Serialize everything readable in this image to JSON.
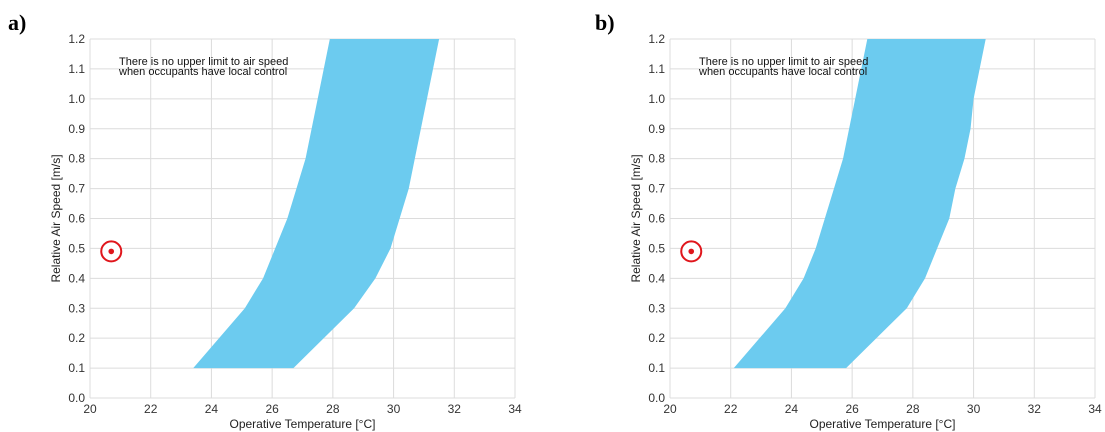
{
  "panels": [
    {
      "label": "a)"
    },
    {
      "label": "b)"
    }
  ],
  "chart_data": [
    {
      "type": "area",
      "xlabel": "Operative Temperature [°C]",
      "ylabel": "Relative Air Speed [m/s]",
      "xlim": [
        20,
        34
      ],
      "ylim": [
        0.0,
        1.2
      ],
      "x_ticks": [
        "20",
        "22",
        "24",
        "26",
        "28",
        "30",
        "32",
        "34"
      ],
      "y_ticks": [
        "0.0",
        "0.1",
        "0.2",
        "0.3",
        "0.4",
        "0.5",
        "0.6",
        "0.7",
        "0.8",
        "0.9",
        "1.0",
        "1.1",
        "1.2"
      ],
      "grid": true,
      "annotation": [
        "There is no upper limit to air speed",
        "when occupants have local control"
      ],
      "comfort_zone_color": "#6ccbef",
      "comfort_zone": {
        "left_boundary": [
          {
            "x": 23.4,
            "y": 0.1
          },
          {
            "x": 25.1,
            "y": 0.3
          },
          {
            "x": 25.7,
            "y": 0.4
          },
          {
            "x": 26.1,
            "y": 0.5
          },
          {
            "x": 26.5,
            "y": 0.6
          },
          {
            "x": 26.8,
            "y": 0.7
          },
          {
            "x": 27.1,
            "y": 0.8
          },
          {
            "x": 27.3,
            "y": 0.9
          },
          {
            "x": 27.5,
            "y": 1.0
          },
          {
            "x": 27.7,
            "y": 1.1
          },
          {
            "x": 27.9,
            "y": 1.2
          }
        ],
        "right_boundary": [
          {
            "x": 26.7,
            "y": 0.1
          },
          {
            "x": 28.7,
            "y": 0.3
          },
          {
            "x": 29.4,
            "y": 0.4
          },
          {
            "x": 29.9,
            "y": 0.5
          },
          {
            "x": 30.2,
            "y": 0.6
          },
          {
            "x": 30.5,
            "y": 0.7
          },
          {
            "x": 30.7,
            "y": 0.8
          },
          {
            "x": 30.9,
            "y": 0.9
          },
          {
            "x": 31.1,
            "y": 1.0
          },
          {
            "x": 31.3,
            "y": 1.1
          },
          {
            "x": 31.5,
            "y": 1.2
          }
        ]
      },
      "marker": {
        "x": 20.7,
        "y": 0.49,
        "color": "#e0161c"
      }
    },
    {
      "type": "area",
      "xlabel": "Operative Temperature [°C]",
      "ylabel": "Relative Air Speed [m/s]",
      "xlim": [
        20,
        34
      ],
      "ylim": [
        0.0,
        1.2
      ],
      "x_ticks": [
        "20",
        "22",
        "24",
        "26",
        "28",
        "30",
        "32",
        "34"
      ],
      "y_ticks": [
        "0.0",
        "0.1",
        "0.2",
        "0.3",
        "0.4",
        "0.5",
        "0.6",
        "0.7",
        "0.8",
        "0.9",
        "1.0",
        "1.1",
        "1.2"
      ],
      "grid": true,
      "annotation": [
        "There is no upper limit to air speed",
        "when occupants have local control"
      ],
      "comfort_zone_color": "#6ccbef",
      "comfort_zone": {
        "left_boundary": [
          {
            "x": 22.1,
            "y": 0.1
          },
          {
            "x": 23.8,
            "y": 0.3
          },
          {
            "x": 24.4,
            "y": 0.4
          },
          {
            "x": 24.8,
            "y": 0.5
          },
          {
            "x": 25.1,
            "y": 0.6
          },
          {
            "x": 25.4,
            "y": 0.7
          },
          {
            "x": 25.7,
            "y": 0.8
          },
          {
            "x": 25.9,
            "y": 0.9
          },
          {
            "x": 26.1,
            "y": 1.0
          },
          {
            "x": 26.3,
            "y": 1.1
          },
          {
            "x": 26.5,
            "y": 1.2
          }
        ],
        "right_boundary": [
          {
            "x": 25.8,
            "y": 0.1
          },
          {
            "x": 27.8,
            "y": 0.3
          },
          {
            "x": 28.4,
            "y": 0.4
          },
          {
            "x": 28.8,
            "y": 0.5
          },
          {
            "x": 29.2,
            "y": 0.6
          },
          {
            "x": 29.4,
            "y": 0.7
          },
          {
            "x": 29.7,
            "y": 0.8
          },
          {
            "x": 29.9,
            "y": 0.9
          },
          {
            "x": 30.0,
            "y": 1.0
          },
          {
            "x": 30.2,
            "y": 1.1
          },
          {
            "x": 30.4,
            "y": 1.2
          }
        ]
      },
      "marker": {
        "x": 20.7,
        "y": 0.49,
        "color": "#e0161c"
      }
    }
  ]
}
